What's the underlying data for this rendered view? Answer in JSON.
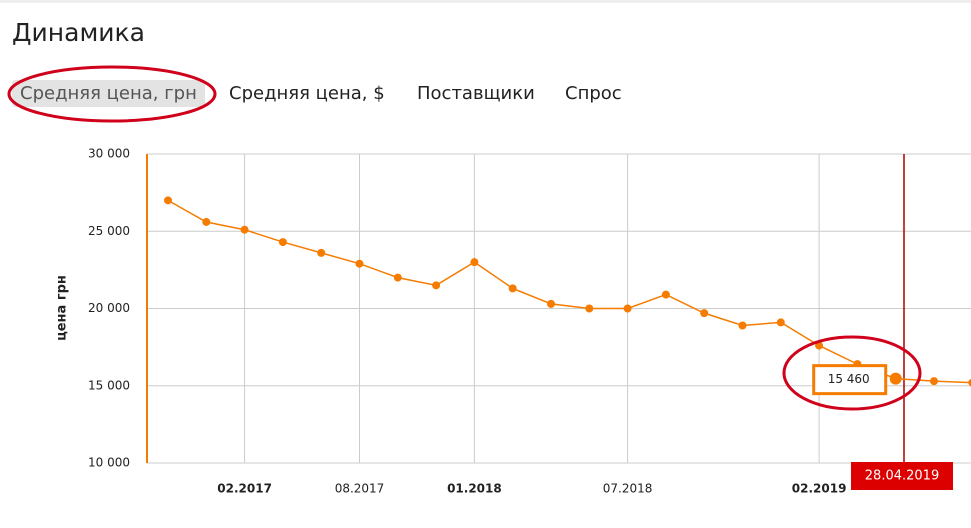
{
  "header": {
    "title": "Динамика"
  },
  "tabs": [
    "Средняя цена, грн",
    "Средняя цена, $",
    "Поставщики",
    "Спрос"
  ],
  "chart_data": {
    "type": "line",
    "y_label": "цена грн",
    "categories": [
      null,
      null,
      "02.2017",
      null,
      null,
      "08.2017",
      null,
      null,
      "01.2018",
      null,
      null,
      null,
      "07.2018",
      null,
      null,
      null,
      null,
      "02.2019",
      null,
      null,
      null,
      null
    ],
    "series": [
      {
        "color": "#f57c00",
        "values": [
          27000,
          25600,
          25100,
          24300,
          23600,
          22900,
          22000,
          21500,
          23000,
          21300,
          20300,
          20000,
          20000,
          20900,
          19700,
          18900,
          19100,
          17600,
          16400,
          15460,
          15300,
          15200
        ],
        "value_labels": [
          null,
          null,
          null,
          null,
          null,
          null,
          null,
          null,
          null,
          null,
          null,
          null,
          null,
          null,
          null,
          null,
          null,
          null,
          null,
          "15 460",
          null,
          null
        ]
      }
    ],
    "ylim": [
      10000,
      30000
    ],
    "yticks": [
      {
        "value": 10000,
        "label": "10 000"
      },
      {
        "value": 15000,
        "label": "15 000"
      },
      {
        "value": 20000,
        "label": "20 000"
      },
      {
        "value": 25000,
        "label": "25 000"
      },
      {
        "value": 30000,
        "label": "30 000"
      }
    ],
    "grid": true,
    "marker_label": "28.04.2019"
  }
}
